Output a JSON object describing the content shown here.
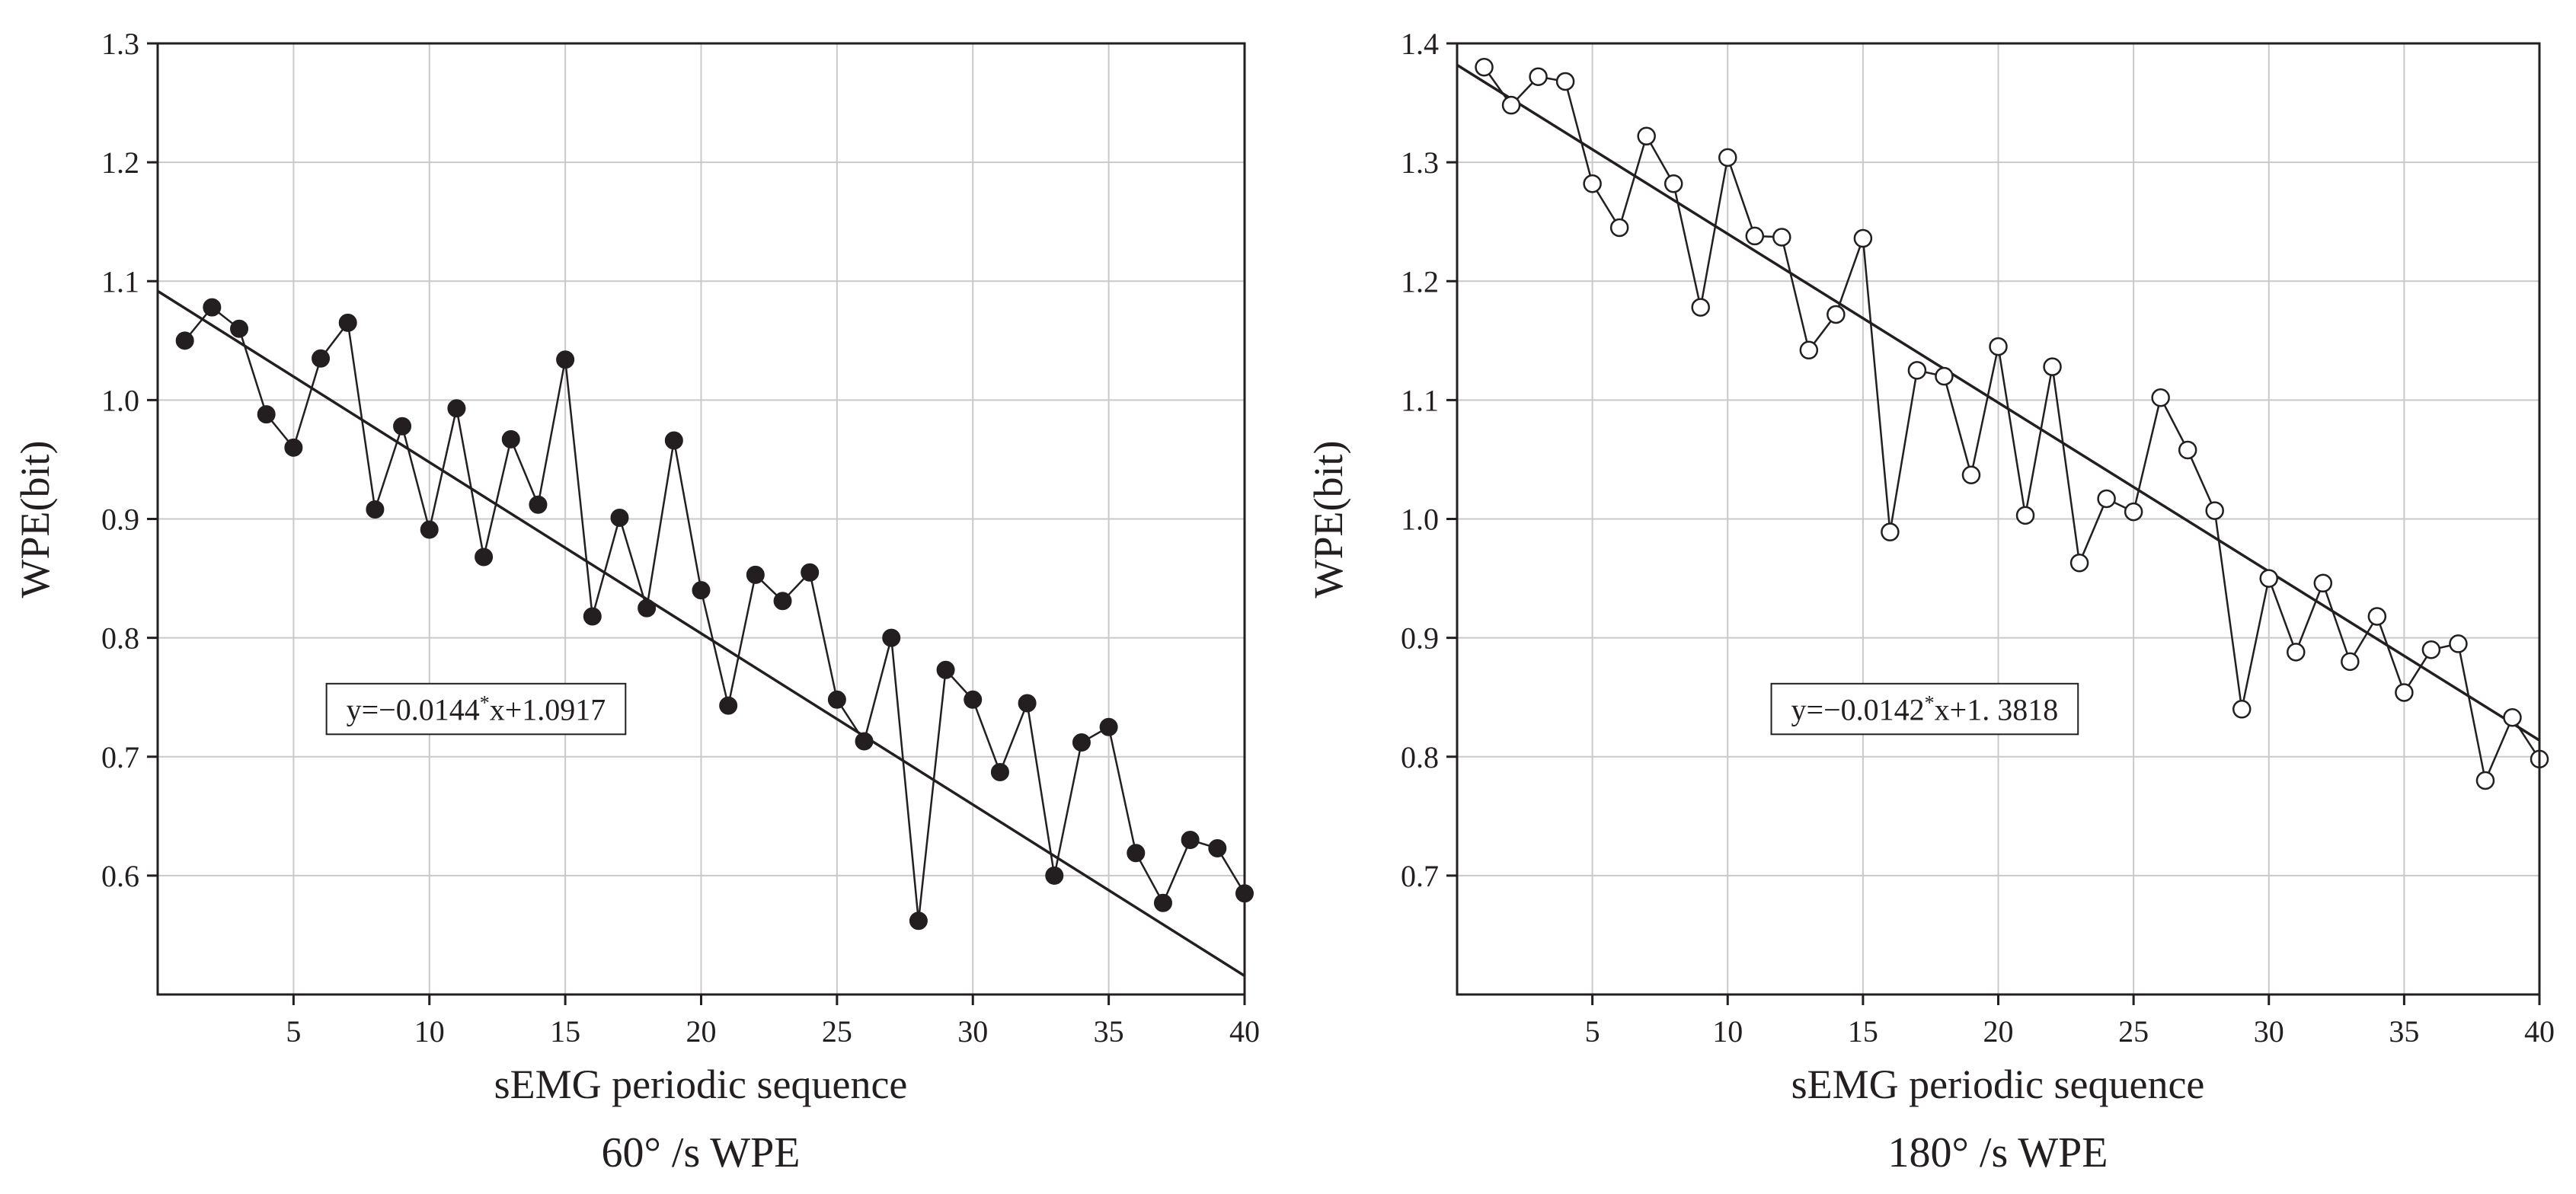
{
  "chart_data": [
    {
      "type": "line",
      "marker": "filled-circle",
      "color": "#231f20",
      "caption": "60°  /s WPE",
      "xlabel": "sEMG  periodic sequence",
      "ylabel": "WPE(bit)",
      "xlim": [
        0,
        40
      ],
      "ylim": [
        0.5,
        1.3
      ],
      "xticks": [
        5,
        10,
        15,
        20,
        25,
        30,
        35,
        40
      ],
      "yticks": [
        0.6,
        0.7,
        0.8,
        0.9,
        1.0,
        1.1,
        1.2,
        1.3
      ],
      "ytick_labels": [
        "0.6",
        "0.7",
        "0.8",
        "0.9",
        "1.0",
        "1.1",
        "1.2",
        "1.3"
      ],
      "grid": true,
      "x": [
        1,
        2,
        3,
        4,
        5,
        6,
        7,
        8,
        9,
        10,
        11,
        12,
        13,
        14,
        15,
        16,
        17,
        18,
        19,
        20,
        21,
        22,
        23,
        24,
        25,
        26,
        27,
        28,
        29,
        30,
        31,
        32,
        33,
        34,
        35,
        36,
        37,
        38,
        39,
        40
      ],
      "y": [
        1.05,
        1.078,
        1.06,
        0.988,
        0.96,
        1.035,
        1.065,
        0.908,
        0.978,
        0.891,
        0.993,
        0.868,
        0.967,
        0.912,
        1.034,
        0.818,
        0.901,
        0.825,
        0.966,
        0.84,
        0.743,
        0.853,
        0.831,
        0.855,
        0.748,
        0.713,
        0.8,
        0.562,
        0.773,
        0.748,
        0.687,
        0.745,
        0.6,
        0.712,
        0.725,
        0.619,
        0.577,
        0.63,
        0.623,
        0.585
      ],
      "fit": {
        "slope": -0.0144,
        "intercept": 1.0917,
        "x_from": 0,
        "x_to": 40
      },
      "equation_label": "y=−0.0144",
      "equation_sup": "*",
      "equation_suffix": "x+1.0917",
      "equation_anchor": {
        "x": 6.1,
        "y": 0.74
      }
    },
    {
      "type": "line",
      "marker": "open-circle",
      "color": "#231f20",
      "caption": "180°  /s WPE",
      "xlabel": "sEMG  periodic sequence",
      "ylabel": "WPE(bit)",
      "xlim": [
        0,
        40
      ],
      "ylim": [
        0.6,
        1.4
      ],
      "xticks": [
        5,
        10,
        15,
        20,
        25,
        30,
        35,
        40
      ],
      "yticks": [
        0.7,
        0.8,
        0.9,
        1.0,
        1.1,
        1.2,
        1.3,
        1.4
      ],
      "ytick_labels": [
        "0.7",
        "0.8",
        "0.9",
        "1.0",
        "1.1",
        "1.2",
        "1.3",
        "1.4"
      ],
      "grid": true,
      "x": [
        1,
        2,
        3,
        4,
        5,
        6,
        7,
        8,
        9,
        10,
        11,
        12,
        13,
        14,
        15,
        16,
        17,
        18,
        19,
        20,
        21,
        22,
        23,
        24,
        25,
        26,
        27,
        28,
        29,
        30,
        31,
        32,
        33,
        34,
        35,
        36,
        37,
        38,
        39,
        40
      ],
      "y": [
        1.38,
        1.348,
        1.372,
        1.368,
        1.282,
        1.245,
        1.322,
        1.282,
        1.178,
        1.304,
        1.238,
        1.237,
        1.142,
        1.172,
        1.236,
        0.989,
        1.125,
        1.12,
        1.037,
        1.145,
        1.003,
        1.128,
        0.963,
        1.017,
        1.006,
        1.102,
        1.058,
        1.007,
        0.84,
        0.95,
        0.888,
        0.946,
        0.88,
        0.918,
        0.854,
        0.89,
        0.895,
        0.78,
        0.833,
        0.798
      ],
      "fit": {
        "slope": -0.0142,
        "intercept": 1.3818,
        "x_from": 0,
        "x_to": 40
      },
      "equation_label": "y=−0.0142",
      "equation_sup": "*",
      "equation_suffix": "x+1. 3818",
      "equation_anchor": {
        "x": 11.5,
        "y": 0.84
      }
    }
  ]
}
